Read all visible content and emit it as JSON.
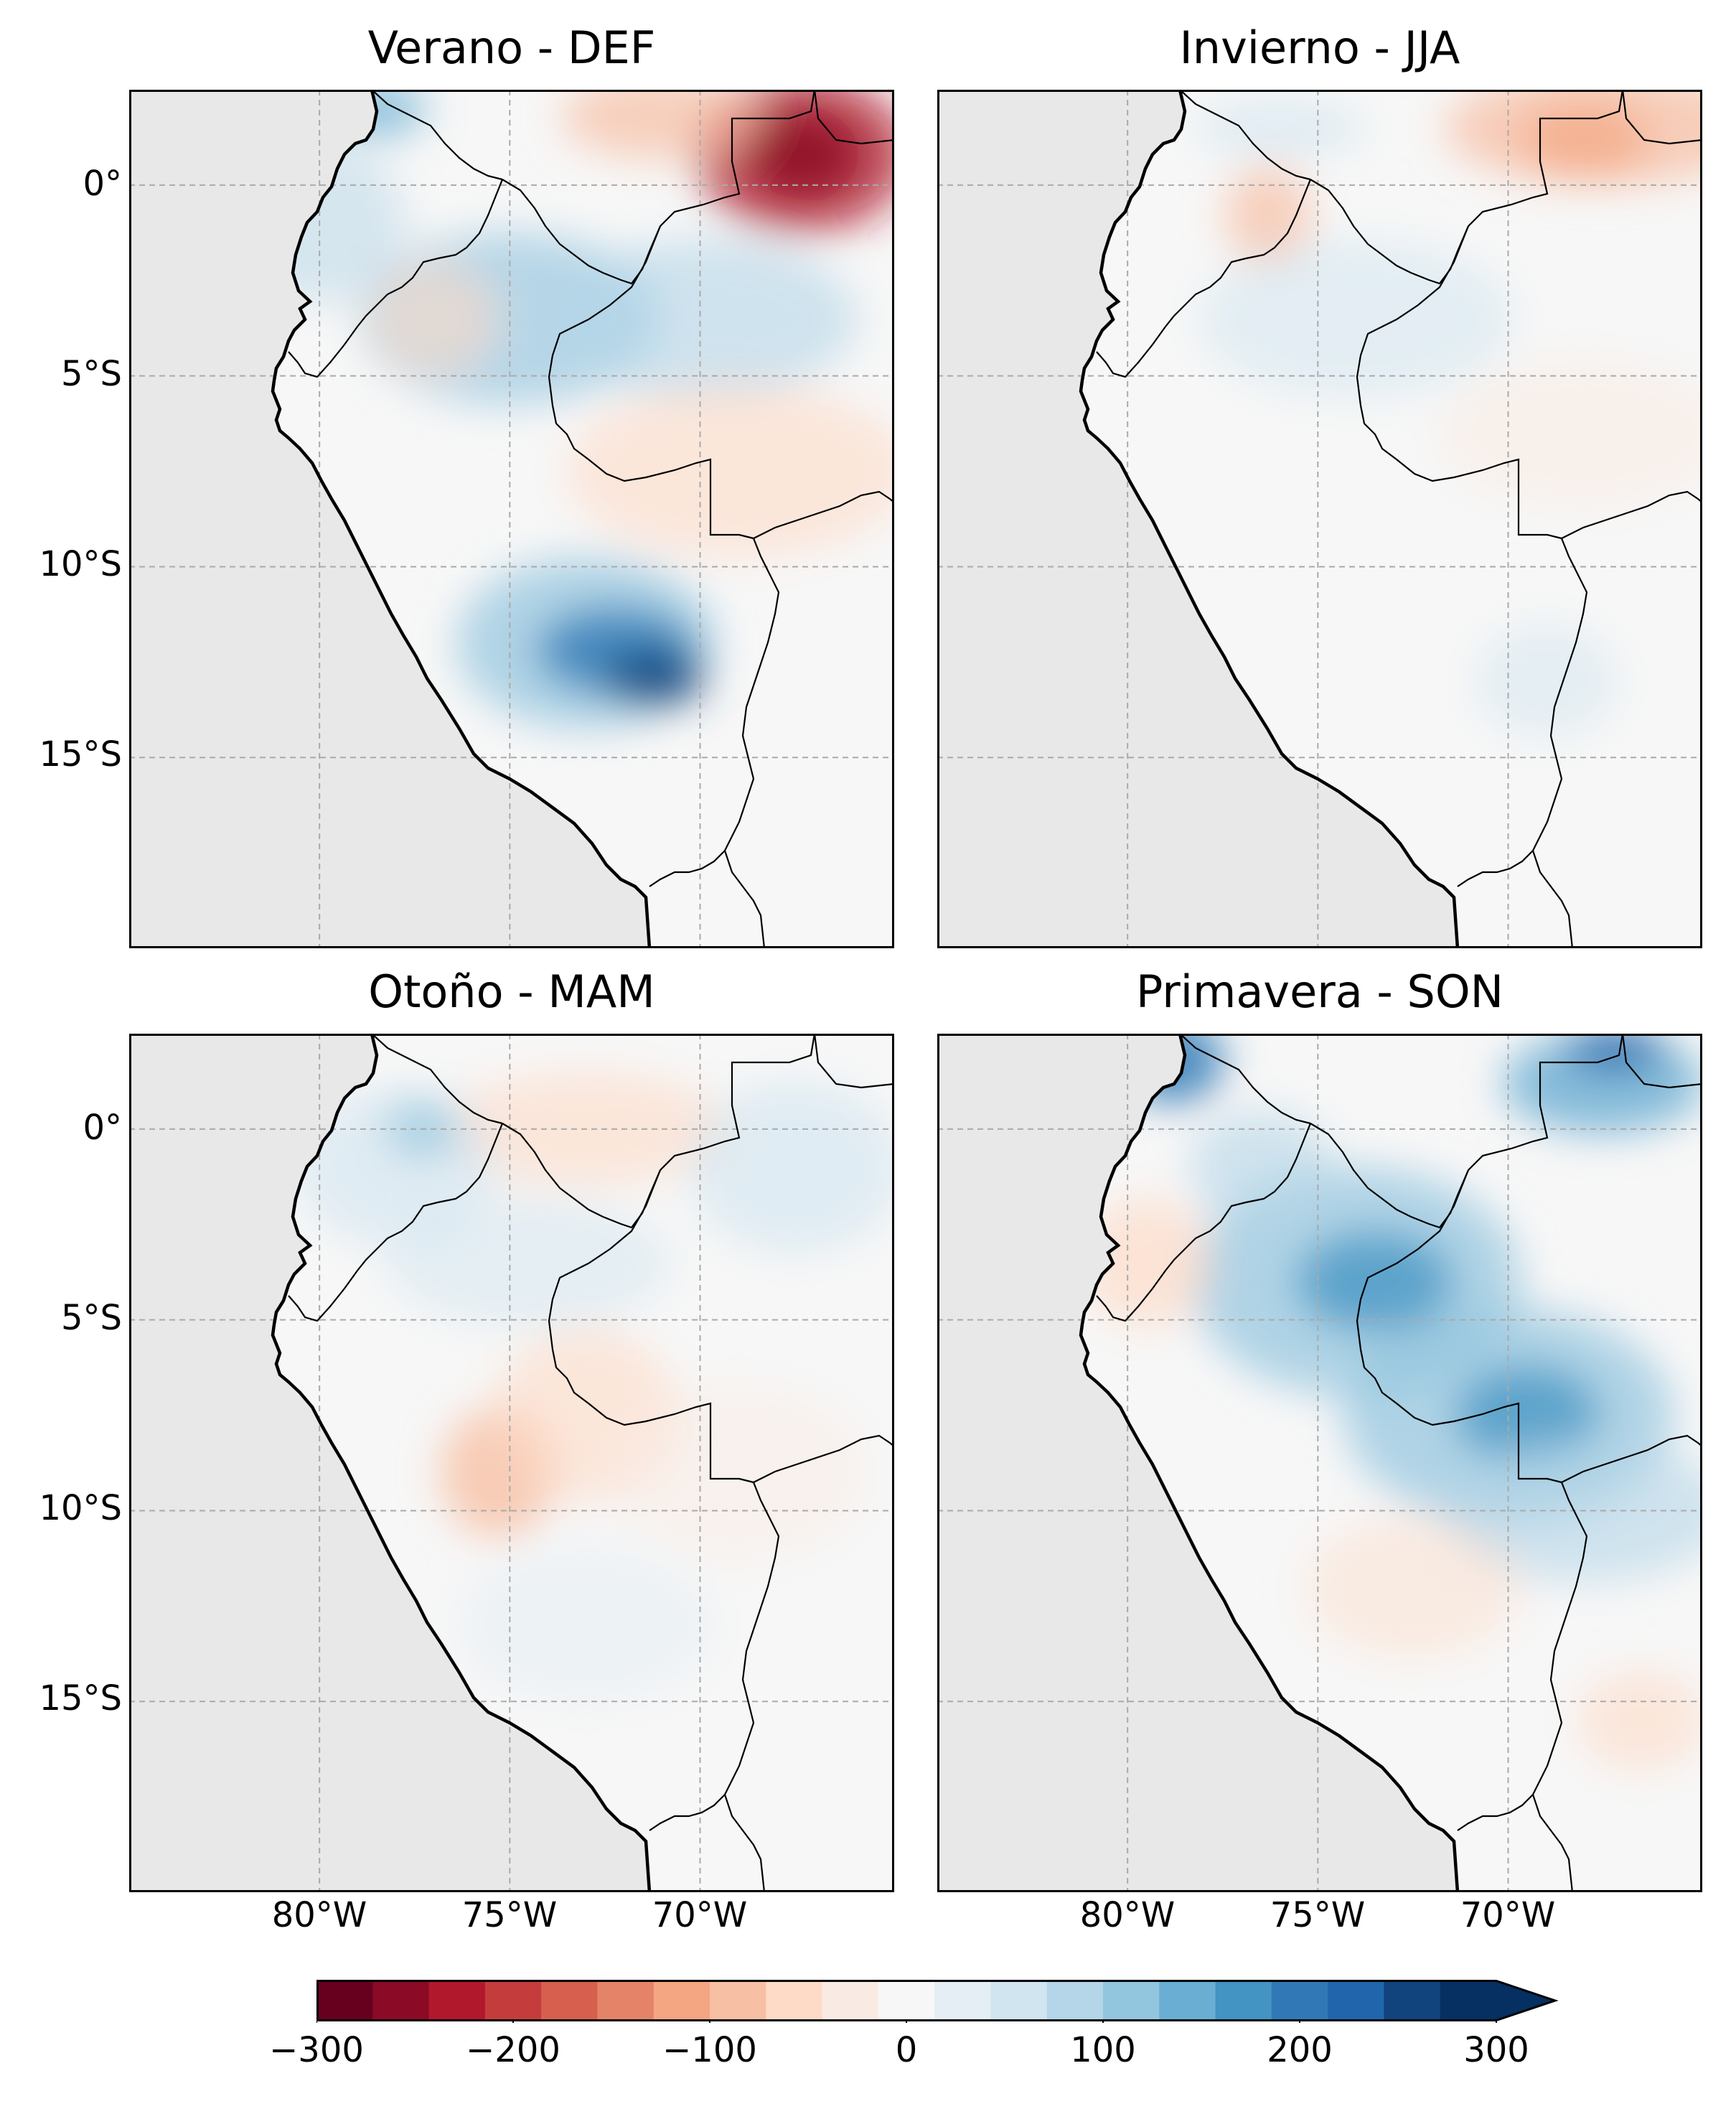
{
  "panels": [
    {
      "id": "def",
      "title": "Verano - DEF"
    },
    {
      "id": "jja",
      "title": "Invierno - JJA"
    },
    {
      "id": "mam",
      "title": "Otoño - MAM"
    },
    {
      "id": "son",
      "title": "Primavera - SON"
    }
  ],
  "lat_ticks": [
    "0°",
    "5°S",
    "10°S",
    "15°S"
  ],
  "lon_ticks": [
    "80°W",
    "75°W",
    "70°W"
  ],
  "colorbar": {
    "labels": [
      "−300",
      "−200",
      "−100",
      "0",
      "100",
      "200",
      "300"
    ],
    "range": [
      -300,
      300
    ],
    "extend": "max",
    "colormap": "RdBu",
    "colors": [
      "#67001f",
      "#8b0a25",
      "#b2182b",
      "#c43c3c",
      "#d6604d",
      "#e58368",
      "#f4a582",
      "#f7bfa4",
      "#fddbc7",
      "#f9ebe3",
      "#f7f7f7",
      "#e4eef4",
      "#d1e5f0",
      "#b4d6e8",
      "#92c5de",
      "#6aaed3",
      "#4393c3",
      "#3079b6",
      "#2166ac",
      "#11437c",
      "#053061"
    ]
  },
  "colors": {
    "land_background": "#f7f7f7",
    "ocean": "#e8e8e8",
    "gridline": "#aaaaaa",
    "border": "#000000"
  }
}
